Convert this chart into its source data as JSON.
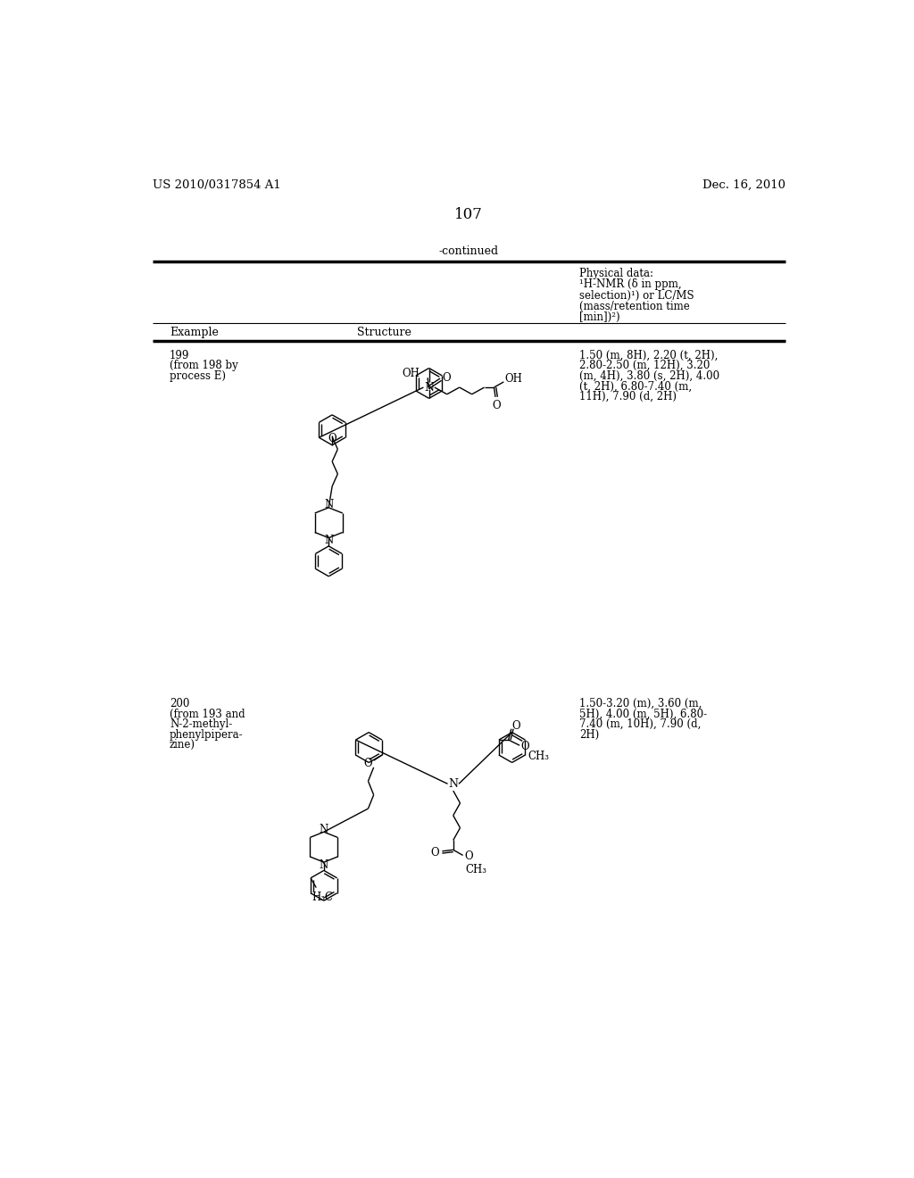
{
  "page_number": "107",
  "patent_number": "US 2010/0317854 A1",
  "patent_date": "Dec. 16, 2010",
  "continued_label": "-continued",
  "header_col1": "Example",
  "header_col2": "Structure",
  "header_col3_lines": [
    "Physical data:",
    "¹H-NMR (δ in ppm,",
    "selection)¹) or LC/MS",
    "(mass/retention time",
    "[min])²)"
  ],
  "example199_lines": [
    "199",
    "(from 198 by",
    "process E)"
  ],
  "example199_nmr": [
    "1.50 (m, 8H), 2.20 (t, 2H),",
    "2.80-2.50 (m, 12H), 3.20",
    "(m, 4H), 3.80 (s, 2H), 4.00",
    "(t, 2H), 6.80-7.40 (m,",
    "11H), 7.90 (d, 2H)"
  ],
  "example200_lines": [
    "200",
    "(from 193 and",
    "N-2-methyl-",
    "phenylpipera-",
    "zine)"
  ],
  "example200_nmr": [
    "1.50-3.20 (m), 3.60 (m,",
    "5H), 4.00 (m, 5H), 6.80-",
    "7.40 (m, 10H), 7.90 (d,",
    "2H)"
  ],
  "bg_color": "#ffffff"
}
